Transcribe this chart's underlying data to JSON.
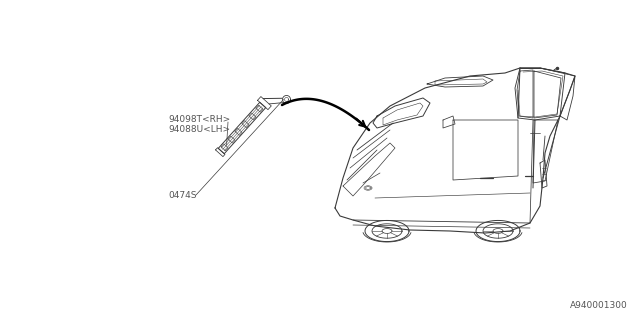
{
  "bg_color": "#ffffff",
  "part_label_1": "94098T<RH>",
  "part_label_2": "94088U<LH>",
  "part_label_3": "0474S",
  "watermark": "A940001300",
  "line_color": "#3a3a3a",
  "text_color": "#555555",
  "font_size_parts": 6.5,
  "font_size_watermark": 6.5
}
